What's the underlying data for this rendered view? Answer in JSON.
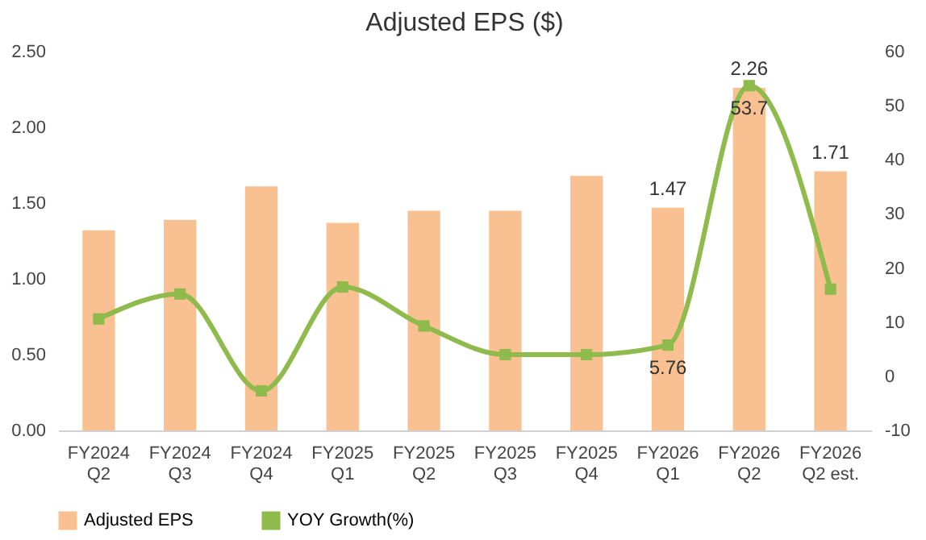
{
  "chart_data": {
    "type": "bar",
    "title": "Adjusted EPS ($)",
    "categories": [
      "FY2024\nQ2",
      "FY2024\nQ3",
      "FY2024\nQ4",
      "FY2025\nQ1",
      "FY2025\nQ2",
      "FY2025\nQ3",
      "FY2025\nQ4",
      "FY2026\nQ1",
      "FY2026\nQ2",
      "FY2026\nQ2 est."
    ],
    "series": [
      {
        "name": "Adjusted EPS",
        "color": "#f9c191",
        "values": [
          1.32,
          1.39,
          1.61,
          1.37,
          1.45,
          1.45,
          1.68,
          1.47,
          2.26,
          1.71
        ],
        "value_labels": [
          null,
          null,
          null,
          null,
          null,
          null,
          null,
          "1.47",
          "2.26",
          "1.71"
        ]
      },
      {
        "name": "YOY Growth(%)",
        "type": "line",
        "axis": "y2",
        "color": "#8fba4c",
        "values": [
          10.6,
          15.2,
          -2.7,
          16.5,
          9.3,
          4.0,
          4.0,
          5.76,
          53.7,
          16.1
        ],
        "value_labels": [
          null,
          null,
          null,
          null,
          null,
          null,
          null,
          "5.76",
          "53.7",
          null
        ]
      }
    ],
    "ylim": [
      0,
      2.5
    ],
    "yticks": [
      {
        "value": 0,
        "label": "0.00"
      },
      {
        "value": 0.5,
        "label": "0.50"
      },
      {
        "value": 1,
        "label": "1.00"
      },
      {
        "value": 1.5,
        "label": "1.50"
      },
      {
        "value": 2,
        "label": "2.00"
      },
      {
        "value": 2.5,
        "label": "2.50"
      }
    ],
    "y2lim": [
      -10,
      60
    ],
    "y2ticks": [
      -10,
      0,
      10,
      20,
      30,
      40,
      50,
      60
    ],
    "grid": false,
    "legend": "bottom",
    "marker": "square"
  }
}
